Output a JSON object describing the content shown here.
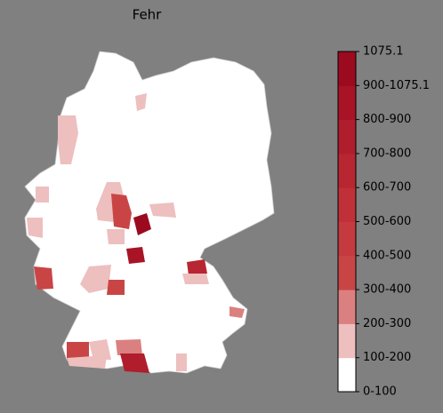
{
  "title": "Fehr",
  "colorbar": {
    "labels": [
      "0-100",
      "100-200",
      "200-300",
      "300-400",
      "400-500",
      "500-600",
      "600-700",
      "700-800",
      "800-900",
      "900-1075.1",
      "1075.1"
    ],
    "colors": [
      "#ffffff",
      "#edbfbf",
      "#db8080",
      "#c94545",
      "#c43a3e",
      "#bf3038",
      "#b82631",
      "#b01d2c",
      "#a81425",
      "#9c0a1f"
    ]
  }
}
